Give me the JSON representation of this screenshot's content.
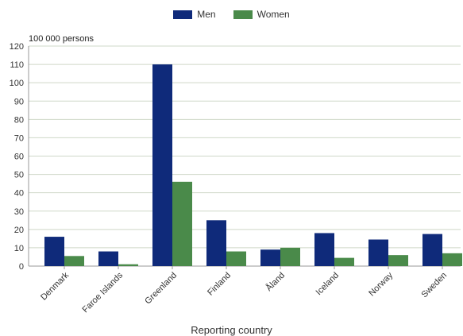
{
  "chart_data": {
    "type": "bar",
    "title": "",
    "unit_label": "100 000 persons",
    "xlabel": "Reporting country",
    "ylabel": "",
    "ylim": [
      0,
      120
    ],
    "yticks": [
      0,
      10,
      20,
      30,
      40,
      50,
      60,
      70,
      80,
      90,
      100,
      110,
      120
    ],
    "grid": true,
    "legend_position": "top-center",
    "categories": [
      "Denmark",
      "Faroe Islands",
      "Greenland",
      "Finland",
      "Åland",
      "Iceland",
      "Norway",
      "Sweden"
    ],
    "series": [
      {
        "name": "Men",
        "color": "#0f2a7a",
        "values": [
          16,
          8,
          110,
          25,
          9,
          18,
          14.5,
          17.5
        ]
      },
      {
        "name": "Women",
        "color": "#4a8a4a",
        "values": [
          5.5,
          1,
          46,
          8,
          10,
          4.5,
          6,
          7
        ]
      }
    ]
  }
}
